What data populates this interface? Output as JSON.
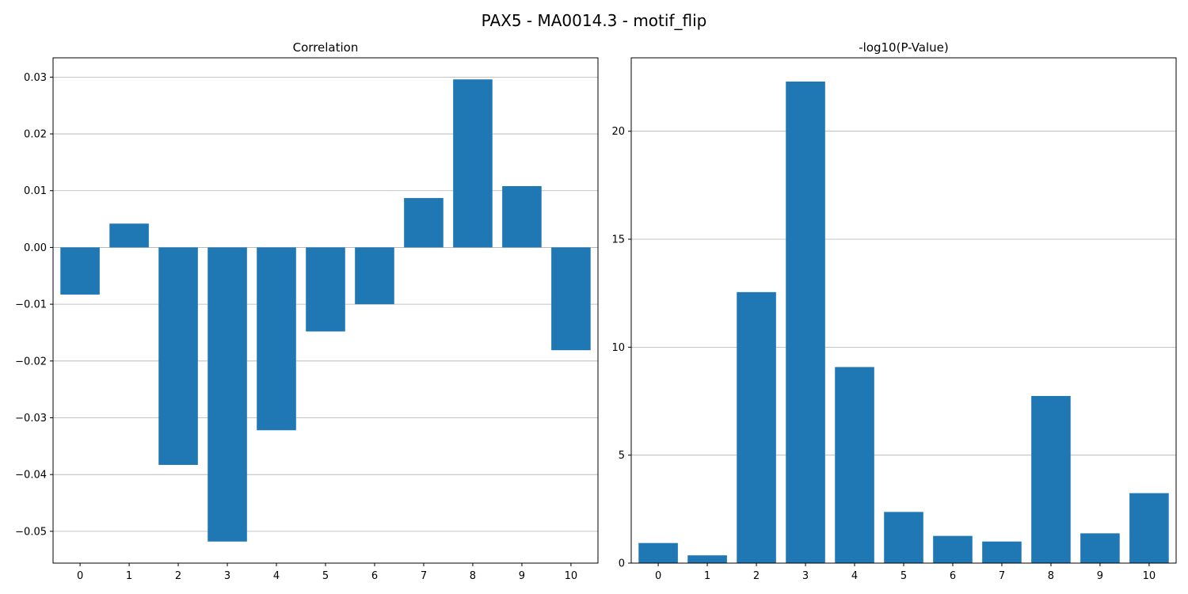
{
  "figure": {
    "suptitle": "PAX5 - MA0014.3 - motif_flip"
  },
  "colors": {
    "bar": "#1f77b4",
    "grid": "#b0b0b0",
    "axis": "#000000"
  },
  "chart_data": [
    {
      "type": "bar",
      "title": "Correlation",
      "xlabel": "",
      "ylabel": "",
      "categories": [
        "0",
        "1",
        "2",
        "3",
        "4",
        "5",
        "6",
        "7",
        "8",
        "9",
        "10"
      ],
      "values": [
        -0.0083,
        0.0042,
        -0.0383,
        -0.0518,
        -0.0322,
        -0.0148,
        -0.01,
        0.0087,
        0.0296,
        0.0108,
        -0.0181
      ],
      "ylim": [
        -0.0556,
        0.0334
      ],
      "yticks": [
        -0.05,
        -0.04,
        -0.03,
        -0.02,
        -0.01,
        0.0,
        0.01,
        0.02,
        0.03
      ],
      "ytick_labels": [
        "−0.05",
        "−0.04",
        "−0.03",
        "−0.02",
        "−0.01",
        "0.00",
        "0.01",
        "0.02",
        "0.03"
      ],
      "grid": "y"
    },
    {
      "type": "bar",
      "title": "-log10(P-Value)",
      "xlabel": "",
      "ylabel": "",
      "categories": [
        "0",
        "1",
        "2",
        "3",
        "4",
        "5",
        "6",
        "7",
        "8",
        "9",
        "10"
      ],
      "values": [
        0.93,
        0.36,
        12.55,
        22.3,
        9.08,
        2.37,
        1.26,
        1.0,
        7.74,
        1.38,
        3.24
      ],
      "ylim": [
        0,
        23.4
      ],
      "yticks": [
        0,
        5,
        10,
        15,
        20
      ],
      "ytick_labels": [
        "0",
        "5",
        "10",
        "15",
        "20"
      ],
      "grid": "y"
    }
  ]
}
